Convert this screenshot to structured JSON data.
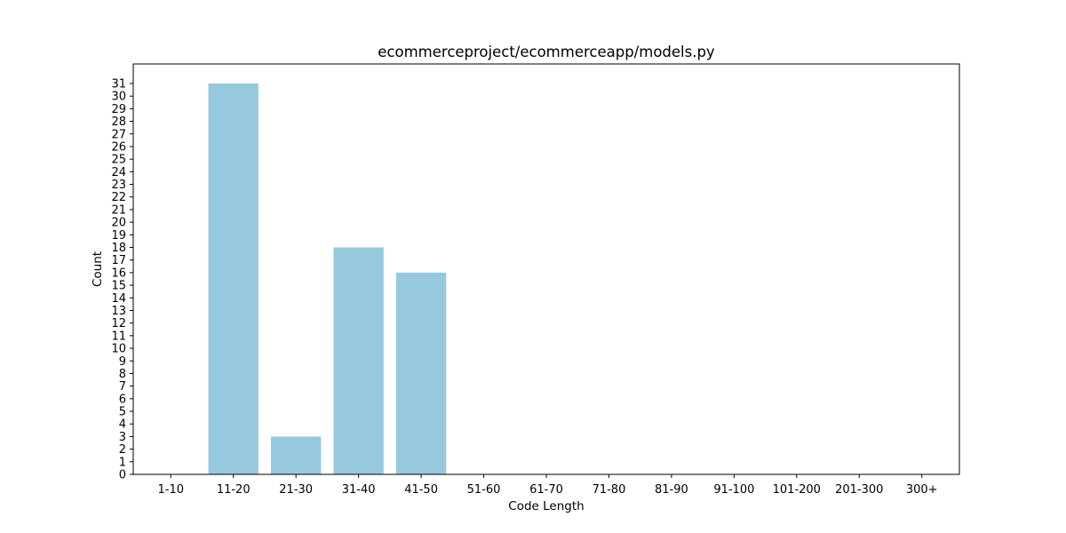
{
  "chart_data": {
    "type": "bar",
    "title": "ecommerceproject/ecommerceapp/models.py",
    "xlabel": "Code Length",
    "ylabel": "Count",
    "categories": [
      "1-10",
      "11-20",
      "21-30",
      "31-40",
      "41-50",
      "51-60",
      "61-70",
      "71-80",
      "81-90",
      "91-100",
      "101-200",
      "201-300",
      "300+"
    ],
    "values": [
      0,
      31,
      3,
      18,
      16,
      0,
      0,
      0,
      0,
      0,
      0,
      0,
      0
    ],
    "ylim": [
      0,
      32.55
    ],
    "yticks": [
      0,
      1,
      2,
      3,
      4,
      5,
      6,
      7,
      8,
      9,
      10,
      11,
      12,
      13,
      14,
      15,
      16,
      17,
      18,
      19,
      20,
      21,
      22,
      23,
      24,
      25,
      26,
      27,
      28,
      29,
      30,
      31
    ],
    "grid": false,
    "legend": "none",
    "bar_color": "#96c9dd"
  }
}
